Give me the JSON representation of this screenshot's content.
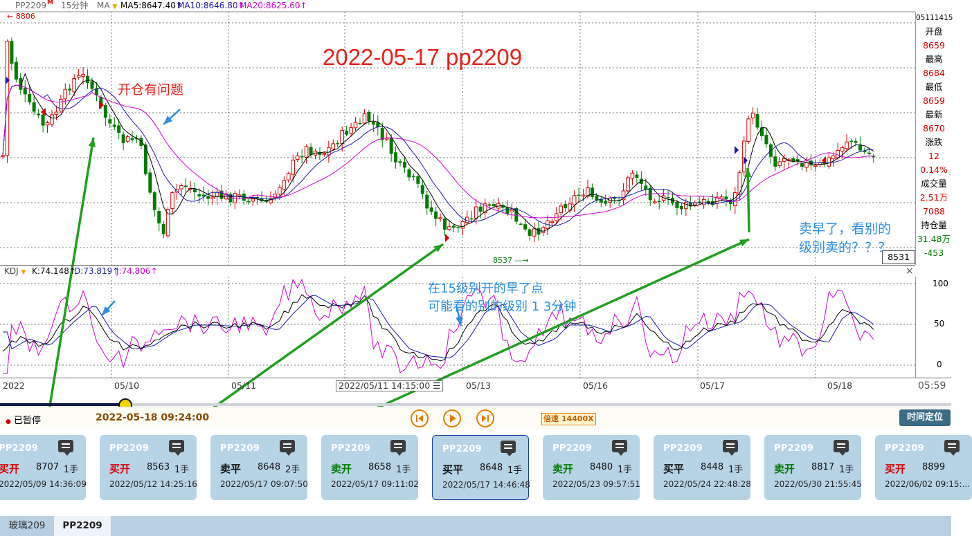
{
  "toolbar": {
    "symbol": "PP2209",
    "symbol_badge": "M",
    "interval": "15分钟",
    "indicator": "MA",
    "ma5": "MA5:8647.40↑",
    "ma10": "MA10:8646.80↑",
    "ma20": "MA20:8625.60↑"
  },
  "chart": {
    "title": "2022-05-17 pp2209",
    "high_label": "8806",
    "low_label": "8537",
    "last_price_tag": "8531",
    "annotations": {
      "open_problem": "开仓有问题",
      "early15_line1": "在15级别开的早了点",
      "early15_line2": "可能看的别的级别 1 3分钟",
      "sold_early_line1": "卖早了，看别的",
      "sold_early_line2": "级别卖的？？？"
    },
    "colors": {
      "up": "#d80000",
      "down": "#007a00",
      "ma5": "#000000",
      "ma10": "#1a1aa8",
      "ma20": "#d000d0",
      "arrow": "#1fa01f",
      "blue_note": "#2a8de0"
    }
  },
  "quote_panel": {
    "time_code": "05111415",
    "labels": [
      "开盘",
      "最高",
      "最低",
      "最新",
      "涨跌",
      "",
      "成交量",
      "",
      "",
      "持仓量",
      "",
      ""
    ],
    "values": [
      "8659",
      "8684",
      "8659",
      "8670",
      "12",
      "0.14%",
      "2.51万",
      "7088",
      "31.48万",
      "-453"
    ]
  },
  "kdj": {
    "name": "KDJ",
    "k": "K:74.148↑",
    "d": "D:73.819↑",
    "j": "J:74.806↑",
    "ticks": [
      "100",
      "50",
      "0"
    ],
    "close_symbol": "×"
  },
  "date_axis": {
    "labels": [
      "2022",
      "05/10",
      "05/11",
      "05/13",
      "05/16",
      "05/17",
      "05/18"
    ],
    "cursor": "2022/05/11 14:15:00",
    "clock": "05:59"
  },
  "playback": {
    "status": "已暂停",
    "datetime": "2022-05-18 09:24:00",
    "speed": "倍速 14400X",
    "locate_button": "时间定位",
    "progress": 0.13
  },
  "trades": [
    {
      "symbol": "PP2209",
      "action": "买开",
      "price": "8707",
      "lots": "1手",
      "time": "2022/05/09 14:36:09",
      "color": "#d80000"
    },
    {
      "symbol": "PP2209",
      "action": "买开",
      "price": "8563",
      "lots": "1手",
      "time": "2022/05/12 14:25:16",
      "color": "#d80000"
    },
    {
      "symbol": "PP2209",
      "action": "卖平",
      "price": "8648",
      "lots": "2手",
      "time": "2022/05/17 09:07:50",
      "color": "#111111"
    },
    {
      "symbol": "PP2209",
      "action": "卖开",
      "price": "8658",
      "lots": "1手",
      "time": "2022/05/17 09:11:02",
      "color": "#007a00"
    },
    {
      "symbol": "PP2209",
      "action": "买平",
      "price": "8648",
      "lots": "1手",
      "time": "2022/05/17 14:46:48",
      "color": "#111111"
    },
    {
      "symbol": "PP2209",
      "action": "卖开",
      "price": "8480",
      "lots": "1手",
      "time": "2022/05/23 09:57:51",
      "color": "#007a00"
    },
    {
      "symbol": "PP2209",
      "action": "买平",
      "price": "8448",
      "lots": "1手",
      "time": "2022/05/24 22:48:28",
      "color": "#111111"
    },
    {
      "symbol": "PP2209",
      "action": "卖开",
      "price": "8817",
      "lots": "1手",
      "time": "2022/05/30 21:55:45",
      "color": "#007a00"
    },
    {
      "symbol": "PP2209",
      "action": "买开",
      "price": "8899",
      "lots": "",
      "time": "2022/06/02 09:15:...",
      "color": "#d80000"
    }
  ],
  "tabs": [
    "玻璃209",
    "PP2209"
  ]
}
